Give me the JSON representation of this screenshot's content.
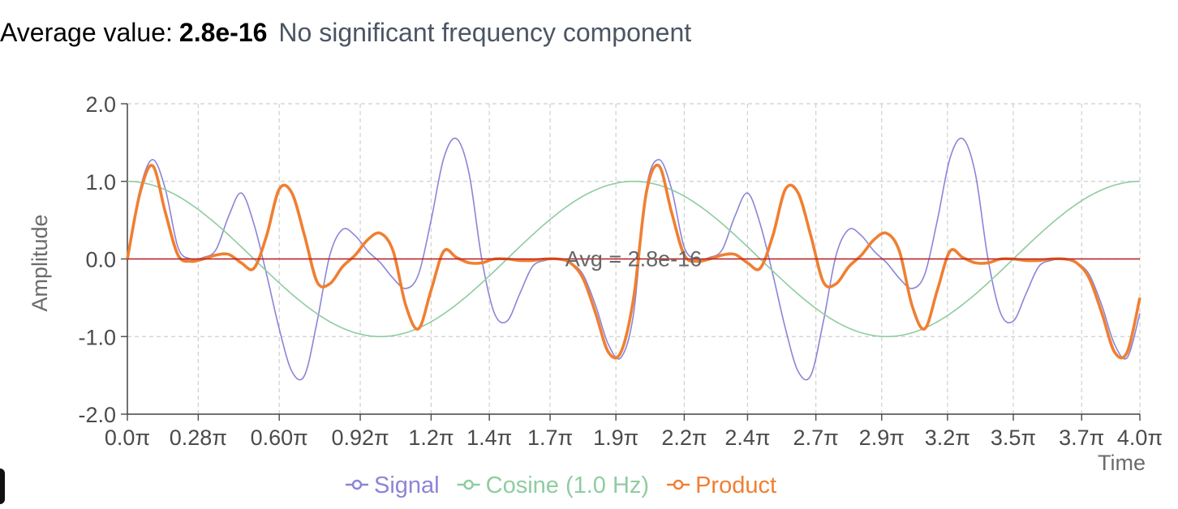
{
  "header": {
    "label": "Average value:",
    "value": "2.8e-16",
    "note": "No significant frequency component"
  },
  "chart_data": {
    "type": "line",
    "ylabel": "Amplitude",
    "xlabel": "Time",
    "xlim": [
      0,
      4
    ],
    "xunit": "π",
    "ylim": [
      -2,
      2
    ],
    "yticks": [
      "2.0",
      "1.0",
      "0.0",
      "-1.0",
      "-2.0"
    ],
    "ytick_values": [
      2,
      1,
      0,
      -1,
      -2
    ],
    "xticks": [
      "0.0π",
      "0.28π",
      "0.60π",
      "0.92π",
      "1.2π",
      "1.4π",
      "1.7π",
      "1.9π",
      "2.2π",
      "2.4π",
      "2.7π",
      "2.9π",
      "3.2π",
      "3.5π",
      "3.7π",
      "4.0π"
    ],
    "xtick_values": [
      0,
      0.28,
      0.6,
      0.92,
      1.2,
      1.43,
      1.67,
      1.93,
      2.2,
      2.45,
      2.72,
      2.98,
      3.24,
      3.5,
      3.77,
      4.0
    ],
    "grid": true,
    "legend_position": "bottom-center",
    "annotation": {
      "text": "Avg = 2.8e-16",
      "x": 2.0,
      "y": 0.0
    },
    "average_line": {
      "y": 0.0,
      "color": "#b91c1c"
    },
    "x": [
      0,
      0.05,
      0.1,
      0.15,
      0.2,
      0.25,
      0.3,
      0.35,
      0.4,
      0.45,
      0.5,
      0.55,
      0.6,
      0.65,
      0.7,
      0.75,
      0.8,
      0.85,
      0.9,
      0.95,
      1.0,
      1.05,
      1.1,
      1.15,
      1.2,
      1.25,
      1.3,
      1.35,
      1.4,
      1.45,
      1.5,
      1.55,
      1.6,
      1.65,
      1.7,
      1.75,
      1.8,
      1.85,
      1.9,
      1.95,
      2.0
    ],
    "series": [
      {
        "name": "Signal",
        "color": "#8b85d6",
        "width": 1.6,
        "period": 2,
        "values": [
          0.0,
          0.9,
          1.28,
          0.9,
          0.15,
          0.0,
          0.02,
          0.12,
          0.55,
          0.85,
          0.45,
          -0.2,
          -0.9,
          -1.45,
          -1.5,
          -0.8,
          0.05,
          0.38,
          0.3,
          0.1,
          -0.05,
          -0.25,
          -0.38,
          -0.2,
          0.5,
          1.3,
          1.55,
          1.1,
          0.0,
          -0.7,
          -0.8,
          -0.45,
          -0.1,
          -0.02,
          0.0,
          -0.05,
          -0.2,
          -0.6,
          -1.1,
          -1.27,
          -0.7
        ]
      },
      {
        "name": "Cosine (1.0 Hz)",
        "color": "#8fcca0",
        "width": 1.6,
        "function": "cos(pi*x)"
      },
      {
        "name": "Product",
        "color": "#f07f32",
        "width": 3.6,
        "period": 2,
        "values": [
          0.0,
          0.85,
          1.2,
          0.6,
          0.05,
          -0.03,
          0.0,
          0.05,
          0.06,
          -0.05,
          -0.12,
          0.3,
          0.9,
          0.85,
          0.3,
          -0.3,
          -0.32,
          -0.1,
          0.05,
          0.25,
          0.33,
          0.1,
          -0.6,
          -0.9,
          -0.4,
          0.1,
          0.02,
          -0.05,
          -0.05,
          0.0,
          0.0,
          -0.02,
          -0.02,
          0.0,
          0.0,
          -0.05,
          -0.25,
          -0.7,
          -1.2,
          -1.2,
          -0.5
        ]
      }
    ]
  }
}
